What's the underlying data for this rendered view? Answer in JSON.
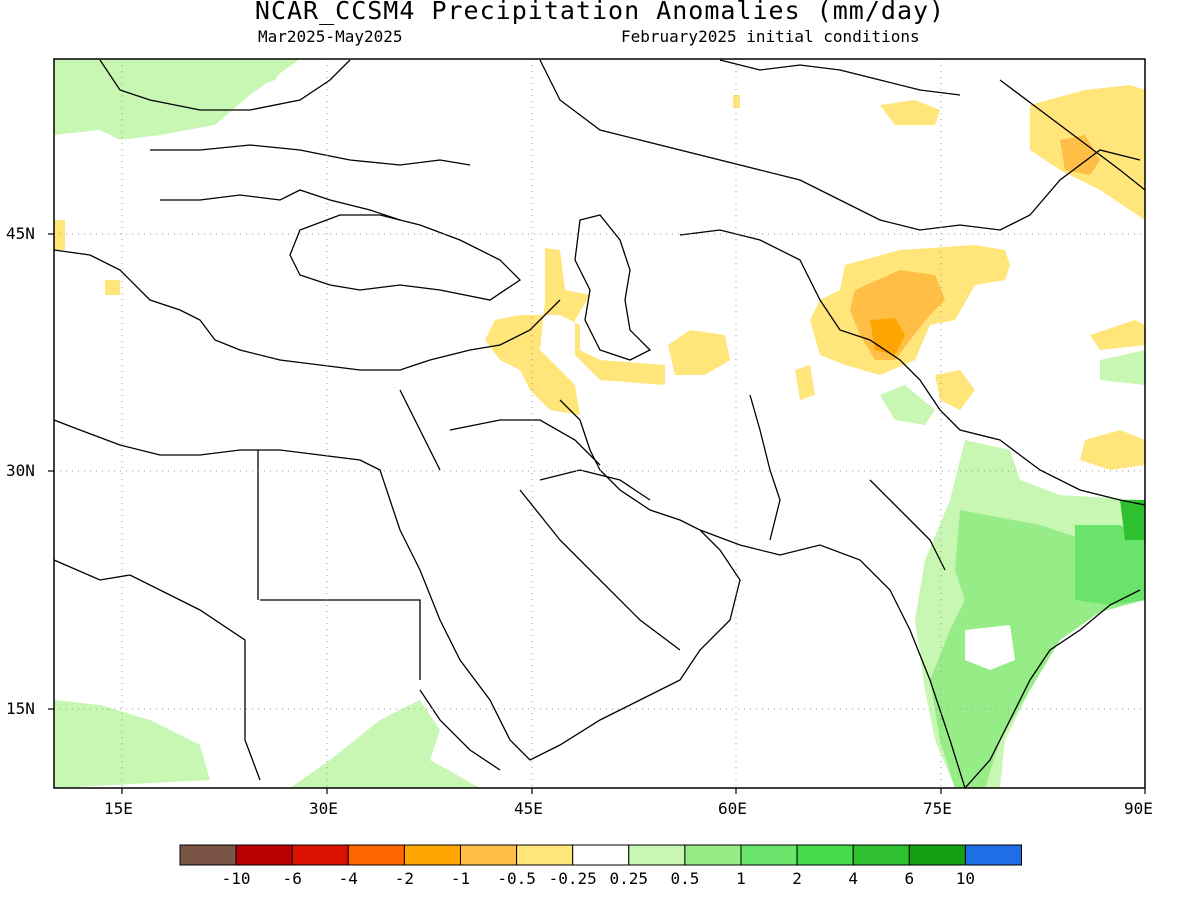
{
  "title": "NCAR_CCSM4 Precipitation Anomalies (mm/day)",
  "subtitle_left": "Mar2025-May2025",
  "subtitle_right": "February2025 initial conditions",
  "map": {
    "lon_range": [
      10,
      90
    ],
    "lat_range": [
      10,
      55
    ],
    "lon_ticks": [
      {
        "value": 15,
        "label": "15E"
      },
      {
        "value": 30,
        "label": "30E"
      },
      {
        "value": 45,
        "label": "45E"
      },
      {
        "value": 60,
        "label": "60E"
      },
      {
        "value": 75,
        "label": "75E"
      },
      {
        "value": 90,
        "label": "90E"
      }
    ],
    "lat_ticks": [
      {
        "value": 45,
        "label": "45N"
      },
      {
        "value": 30,
        "label": "30N"
      },
      {
        "value": 15,
        "label": "15N"
      }
    ],
    "grid": "dotted"
  },
  "colorbar": {
    "colors": [
      "#7a5545",
      "#bb0000",
      "#dd1100",
      "#ff6600",
      "#ffa500",
      "#ffbe45",
      "#ffe57a",
      "#ffffff",
      "#c8f7b4",
      "#96ec86",
      "#6ae36a",
      "#45dc4a",
      "#2fc030",
      "#12a012",
      "#1e6ee6"
    ],
    "labels": [
      "-10",
      "-6",
      "-4",
      "-2",
      "-1",
      "-0.5",
      "-0.25",
      "0.25",
      "0.5",
      "1",
      "2",
      "4",
      "6",
      "10"
    ]
  },
  "icons": {
    "map": "precipitation-anomaly-map",
    "legend": "colorbar"
  }
}
